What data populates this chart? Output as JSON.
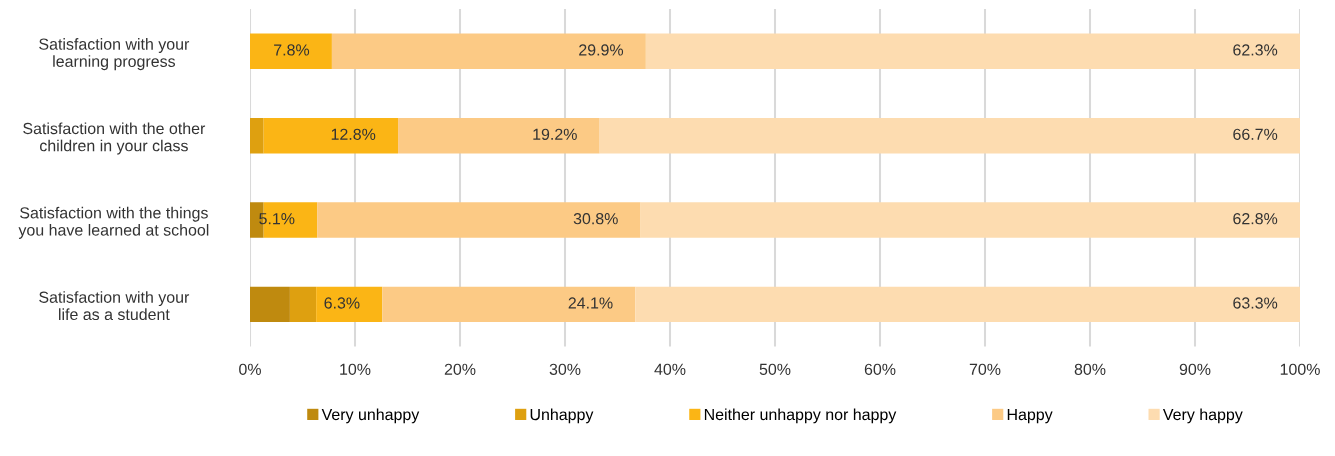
{
  "chart_data": {
    "type": "bar",
    "orientation": "horizontal",
    "stacked": true,
    "categories": [
      "Satisfaction with your learning progress",
      "Satisfaction with the other children in your class",
      "Satisfaction with the things you have learned at school",
      "Satisfaction with your life as a student"
    ],
    "series": [
      {
        "name": "Very unhappy",
        "color": "#bf8a0f",
        "values": [
          0,
          0,
          1.3,
          3.8
        ],
        "value_labels": [
          null,
          null,
          null,
          null
        ]
      },
      {
        "name": "Unhappy",
        "color": "#dea010",
        "values": [
          0,
          1.3,
          0,
          2.5
        ],
        "value_labels": [
          null,
          null,
          null,
          null
        ]
      },
      {
        "name": "Neither unhappy nor happy",
        "color": "#fbb515",
        "values": [
          7.8,
          12.8,
          5.1,
          6.3
        ],
        "value_labels": [
          "7.8%",
          "12.8%",
          "5.1%",
          "6.3%"
        ]
      },
      {
        "name": "Happy",
        "color": "#fcca85",
        "values": [
          29.9,
          19.2,
          30.8,
          24.1
        ],
        "value_labels": [
          "29.9%",
          "19.2%",
          "30.8%",
          "24.1%"
        ]
      },
      {
        "name": "Very happy",
        "color": "#fddcb0",
        "values": [
          62.3,
          66.7,
          62.8,
          63.3
        ],
        "value_labels": [
          "62.3%",
          "66.7%",
          "62.8%",
          "63.3%"
        ]
      }
    ],
    "xlim": [
      0,
      100
    ],
    "xticks": [
      {
        "value": 0,
        "label": "0%"
      },
      {
        "value": 10,
        "label": "10%"
      },
      {
        "value": 20,
        "label": "20%"
      },
      {
        "value": 30,
        "label": "30%"
      },
      {
        "value": 40,
        "label": "40%"
      },
      {
        "value": 50,
        "label": "50%"
      },
      {
        "value": 60,
        "label": "60%"
      },
      {
        "value": 70,
        "label": "70%"
      },
      {
        "value": 80,
        "label": "80%"
      },
      {
        "value": 90,
        "label": "90%"
      },
      {
        "value": 100,
        "label": "100%"
      }
    ],
    "grid": "x",
    "legend": "bottom"
  }
}
